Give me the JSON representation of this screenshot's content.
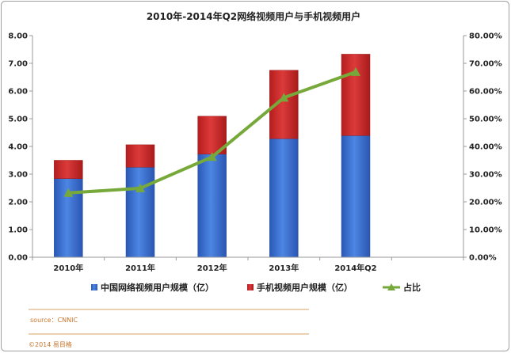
{
  "chart_data": {
    "type": "bar",
    "title": "2010年-2014年Q2网络视频用户与手机视频用户",
    "categories": [
      "2010年",
      "2011年",
      "2012年",
      "2013年",
      "2014年Q2"
    ],
    "series": [
      {
        "name": "中国网络视频用户规模（亿）",
        "type": "bar",
        "stack": "users",
        "color": "#3a6fd0",
        "axis": "left",
        "values": [
          2.84,
          3.25,
          3.72,
          4.28,
          4.39
        ]
      },
      {
        "name": "手机视频用户规模（亿）",
        "type": "bar",
        "stack": "users",
        "color": "#cc2727",
        "axis": "left",
        "values": [
          0.66,
          0.81,
          1.37,
          2.47,
          2.94
        ]
      },
      {
        "name": "占比",
        "type": "line",
        "color": "#77a93a",
        "axis": "right",
        "values": [
          23.2,
          24.9,
          36.2,
          57.6,
          66.9
        ]
      }
    ],
    "ylim": [
      0,
      8
    ],
    "y_ticks": [
      "0.00",
      "1.00",
      "2.00",
      "3.00",
      "4.00",
      "5.00",
      "6.00",
      "7.00",
      "8.00"
    ],
    "y2lim": [
      0,
      80
    ],
    "y2_ticks": [
      "0.00%",
      "10.00%",
      "20.00%",
      "30.00%",
      "40.00%",
      "50.00%",
      "60.00%",
      "70.00%",
      "80.00%"
    ],
    "grid": false,
    "legend_position": "bottom",
    "source": "source：CNNIC",
    "copyright": "©2014 易目格"
  },
  "colors": {
    "frame_border": "#a0a0a0",
    "axis_line": "#9a9a9a",
    "footer_rule": "#d9a264"
  }
}
